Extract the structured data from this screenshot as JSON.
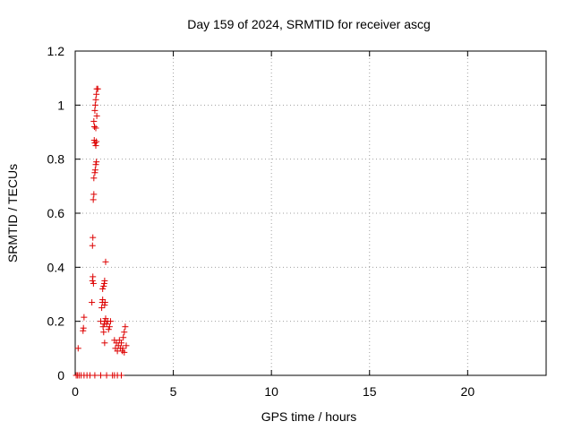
{
  "chart_data": {
    "type": "scatter",
    "title": "Day 159 of 2024, SRMTID for receiver ascg",
    "xlabel": "GPS time / hours",
    "ylabel": "SRMTID / TECUs",
    "xlim": [
      0,
      24
    ],
    "ylim": [
      0,
      1.2
    ],
    "xticks": [
      0,
      5,
      10,
      15,
      20
    ],
    "yticks": [
      0,
      0.2,
      0.4,
      0.6,
      0.8,
      1,
      1.2
    ],
    "xtick_labels": [
      "0",
      "5",
      "10",
      "15",
      "20"
    ],
    "ytick_labels": [
      "0",
      "0.2",
      "0.4",
      "0.6",
      "0.8",
      "1",
      "1.2"
    ],
    "grid": true,
    "marker": "plus",
    "color": "#dd0000",
    "series": [
      {
        "name": "SRMTID",
        "points": [
          [
            0.05,
            0.0
          ],
          [
            0.12,
            0.0
          ],
          [
            0.2,
            0.0
          ],
          [
            0.3,
            0.0
          ],
          [
            0.45,
            0.0
          ],
          [
            0.6,
            0.0
          ],
          [
            0.75,
            0.0
          ],
          [
            1.0,
            0.0
          ],
          [
            1.3,
            0.0
          ],
          [
            1.6,
            0.0
          ],
          [
            1.9,
            0.0
          ],
          [
            2.0,
            0.0
          ],
          [
            2.15,
            0.0
          ],
          [
            2.35,
            0.0
          ],
          [
            0.15,
            0.1
          ],
          [
            0.4,
            0.165
          ],
          [
            0.42,
            0.175
          ],
          [
            0.45,
            0.215
          ],
          [
            0.85,
            0.27
          ],
          [
            0.88,
            0.35
          ],
          [
            0.9,
            0.365
          ],
          [
            0.93,
            0.34
          ],
          [
            0.88,
            0.48
          ],
          [
            0.9,
            0.51
          ],
          [
            0.92,
            0.65
          ],
          [
            0.95,
            0.67
          ],
          [
            0.95,
            0.73
          ],
          [
            1.0,
            0.75
          ],
          [
            1.02,
            0.76
          ],
          [
            1.05,
            0.78
          ],
          [
            1.08,
            0.79
          ],
          [
            0.97,
            0.87
          ],
          [
            1.0,
            0.86
          ],
          [
            1.05,
            0.85
          ],
          [
            1.08,
            0.865
          ],
          [
            0.98,
            0.92
          ],
          [
            1.05,
            0.915
          ],
          [
            0.95,
            0.94
          ],
          [
            1.1,
            0.96
          ],
          [
            1.0,
            0.98
          ],
          [
            1.02,
            1.0
          ],
          [
            1.05,
            1.02
          ],
          [
            1.08,
            1.04
          ],
          [
            1.1,
            1.06
          ],
          [
            1.15,
            1.06
          ],
          [
            1.3,
            0.2
          ],
          [
            1.35,
            0.25
          ],
          [
            1.38,
            0.27
          ],
          [
            1.4,
            0.28
          ],
          [
            1.4,
            0.32
          ],
          [
            1.45,
            0.33
          ],
          [
            1.48,
            0.34
          ],
          [
            1.5,
            0.35
          ],
          [
            1.5,
            0.26
          ],
          [
            1.52,
            0.27
          ],
          [
            1.55,
            0.42
          ],
          [
            1.42,
            0.18
          ],
          [
            1.48,
            0.19
          ],
          [
            1.5,
            0.2
          ],
          [
            1.55,
            0.21
          ],
          [
            1.6,
            0.19
          ],
          [
            1.65,
            0.2
          ],
          [
            1.7,
            0.17
          ],
          [
            1.75,
            0.18
          ],
          [
            1.8,
            0.2
          ],
          [
            1.5,
            0.12
          ],
          [
            1.45,
            0.16
          ],
          [
            2.0,
            0.13
          ],
          [
            2.05,
            0.1
          ],
          [
            2.1,
            0.12
          ],
          [
            2.15,
            0.09
          ],
          [
            2.2,
            0.11
          ],
          [
            2.25,
            0.13
          ],
          [
            2.3,
            0.1
          ],
          [
            2.35,
            0.12
          ],
          [
            2.4,
            0.09
          ],
          [
            2.45,
            0.14
          ],
          [
            2.5,
            0.16
          ],
          [
            2.55,
            0.18
          ],
          [
            2.6,
            0.11
          ],
          [
            2.5,
            0.085
          ],
          [
            2.42,
            0.1
          ]
        ]
      }
    ]
  }
}
